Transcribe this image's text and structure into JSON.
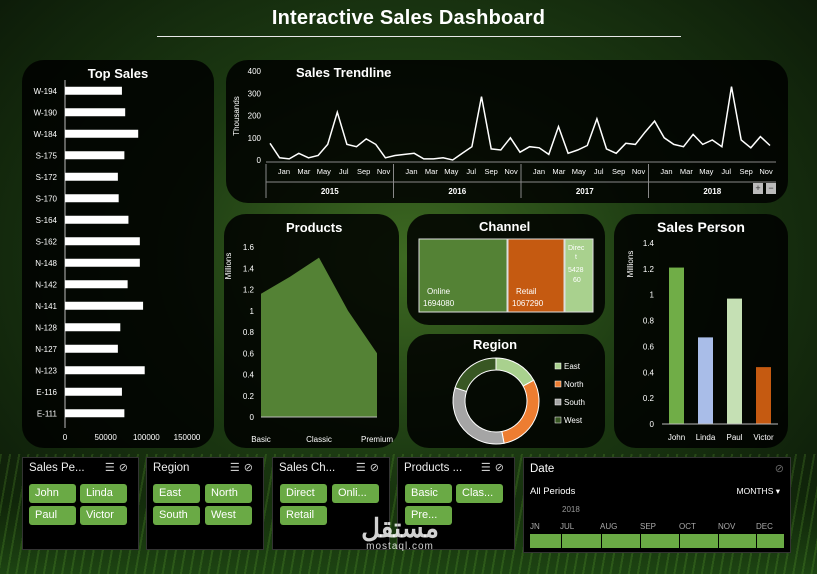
{
  "title": "Interactive Sales Dashboard",
  "colors": {
    "green": "#5b9a3a",
    "light_green": "#a8d08d",
    "blue": "#a9bde8",
    "orange": "#d26526",
    "gray": "#a5a5a5",
    "dark_green": "#385e24"
  },
  "chart_data": [
    {
      "id": "top_sales",
      "type": "bar",
      "orientation": "horizontal",
      "title": "Top Sales",
      "categories": [
        "W-194",
        "W-190",
        "W-184",
        "S-175",
        "S-172",
        "S-170",
        "S-164",
        "S-162",
        "N-148",
        "N-142",
        "N-141",
        "N-128",
        "N-127",
        "N-123",
        "E-116",
        "E-111"
      ],
      "values": [
        70000,
        74000,
        90000,
        73000,
        65000,
        66000,
        78000,
        92000,
        92000,
        77000,
        96000,
        68000,
        65000,
        98000,
        70000,
        73000
      ],
      "xlim": [
        0,
        150000
      ],
      "xticks": [
        "0",
        "50000",
        "100000",
        "150000"
      ]
    },
    {
      "id": "sales_trendline",
      "type": "line",
      "title": "Sales Trendline",
      "ylabel": "Thousands",
      "yticks": [
        "0",
        "100",
        "200",
        "300",
        "400"
      ],
      "ylim": [
        0,
        400
      ],
      "month_labels": [
        "Jan",
        "Mar",
        "May",
        "Jul",
        "Sep",
        "Nov"
      ],
      "years": [
        "2015",
        "2016",
        "2017",
        "2018"
      ],
      "values": [
        75,
        10,
        5,
        30,
        10,
        20,
        70,
        215,
        70,
        60,
        95,
        70,
        10,
        20,
        25,
        30,
        5,
        5,
        10,
        0,
        30,
        60,
        285,
        50,
        45,
        100,
        35,
        60,
        55,
        25,
        150,
        30,
        45,
        65,
        185,
        50,
        30,
        75,
        70,
        125,
        175,
        100,
        70,
        60,
        115,
        70,
        90,
        60,
        330,
        90,
        55,
        105,
        65
      ]
    },
    {
      "id": "products",
      "type": "area",
      "title": "Products",
      "ylabel": "Millions",
      "categories": [
        "Basic",
        "Classic",
        "Premium"
      ],
      "x": [
        "Basic",
        "Basic–Classic",
        "Classic",
        "Classic–Premium",
        "Premium"
      ],
      "values": [
        1.16,
        1.32,
        1.5,
        1.0,
        0.6
      ],
      "yticks": [
        "0",
        "0.2",
        "0.4",
        "0.6",
        "0.8",
        "1",
        "1.2",
        "1.4",
        "1.6"
      ],
      "ylim": [
        0,
        1.6
      ]
    },
    {
      "id": "channel",
      "type": "treemap",
      "title": "Channel",
      "items": [
        {
          "label": "Online",
          "value": "1694080",
          "color": "#548235"
        },
        {
          "label": "Retail",
          "value": "1067290",
          "color": "#c55a11"
        },
        {
          "label": "Direc t",
          "value": "5428 60",
          "color": "#a9d18e"
        }
      ]
    },
    {
      "id": "region",
      "type": "pie",
      "title": "Region",
      "legend": [
        "East",
        "North",
        "South",
        "West"
      ],
      "values": [
        17,
        30,
        33,
        20
      ],
      "slice_colors": [
        "#a9d18e",
        "#ed7d31",
        "#a5a5a5",
        "#385723"
      ]
    },
    {
      "id": "sales_person",
      "type": "bar",
      "title": "Sales Person",
      "ylabel": "Millions",
      "categories": [
        "John",
        "Linda",
        "Paul",
        "Victor"
      ],
      "values": [
        1.21,
        0.67,
        0.97,
        0.44
      ],
      "bar_colors": [
        "#70ad47",
        "#a9bde8",
        "#c5e0b4",
        "#c55a11"
      ],
      "yticks": [
        "0",
        "0.2",
        "0.4",
        "0.6",
        "0.8",
        "1",
        "1.2",
        "1.4"
      ],
      "ylim": [
        0,
        1.4
      ]
    }
  ],
  "slicers": {
    "sales_person": {
      "title": "Sales Pe...",
      "items": [
        "John",
        "Linda",
        "Paul",
        "Victor"
      ]
    },
    "region": {
      "title": "Region",
      "items": [
        "East",
        "North",
        "South",
        "West"
      ]
    },
    "sales_channel": {
      "title": "Sales Ch...",
      "items": [
        "Direct",
        "Onli...",
        "Retail"
      ]
    },
    "products": {
      "title": "Products ...",
      "items": [
        "Basic",
        "Clas...",
        "Pre..."
      ]
    }
  },
  "date_slicer": {
    "title": "Date",
    "periods": "All Periods",
    "level": "MONTHS ▾",
    "year": "2018",
    "months": [
      "JN",
      "JUL",
      "AUG",
      "SEP",
      "OCT",
      "NOV",
      "DEC"
    ]
  },
  "watermark": {
    "arabic": "مستقل",
    "latin": "mostaql.com"
  },
  "zoom": {
    "plus": "+",
    "minus": "−"
  }
}
